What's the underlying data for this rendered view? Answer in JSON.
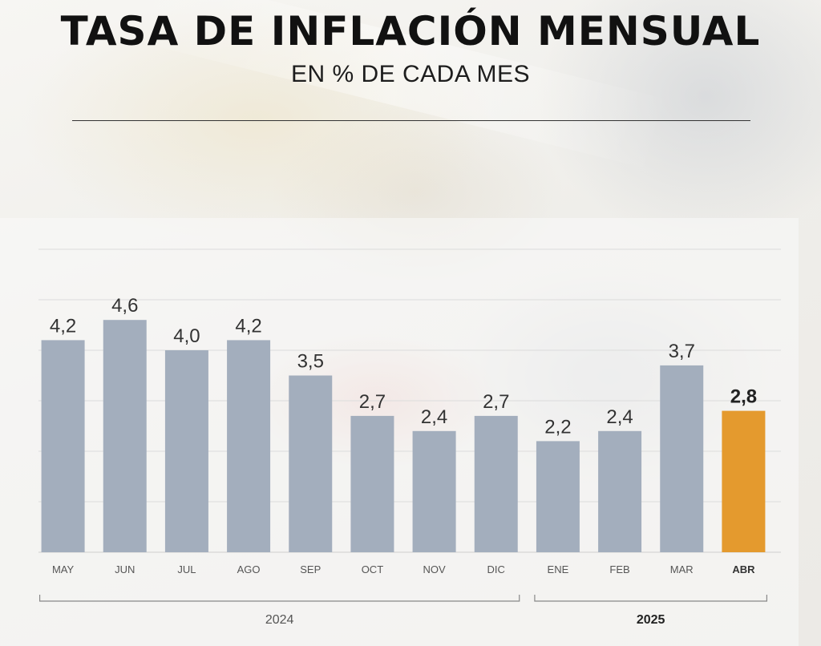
{
  "chart_data": {
    "type": "bar",
    "title": "TASA DE INFLACIÓN MENSUAL",
    "subtitle": "EN % DE CADA MES",
    "categories": [
      "MAY",
      "JUN",
      "JUL",
      "AGO",
      "SEP",
      "OCT",
      "NOV",
      "DIC",
      "ENE",
      "FEB",
      "MAR",
      "ABR"
    ],
    "values": [
      4.2,
      4.6,
      4.0,
      4.2,
      3.5,
      2.7,
      2.4,
      2.7,
      2.2,
      2.4,
      3.7,
      2.8
    ],
    "value_labels": [
      "4,2",
      "4,6",
      "4,0",
      "4,2",
      "3,5",
      "2,7",
      "2,4",
      "2,7",
      "2,2",
      "2,4",
      "3,7",
      "2,8"
    ],
    "highlight_index": 11,
    "ylim": [
      0,
      6
    ],
    "grid": true,
    "xlabel": "",
    "ylabel": "",
    "year_groups": [
      {
        "label": "2024",
        "from": 0,
        "to": 7,
        "bold": false
      },
      {
        "label": "2025",
        "from": 8,
        "to": 11,
        "bold": true
      }
    ]
  },
  "colors": {
    "bar": "#a3aebd",
    "highlight": "#e49a2e",
    "grid": "#dcdcdc",
    "axis": "#888888"
  }
}
